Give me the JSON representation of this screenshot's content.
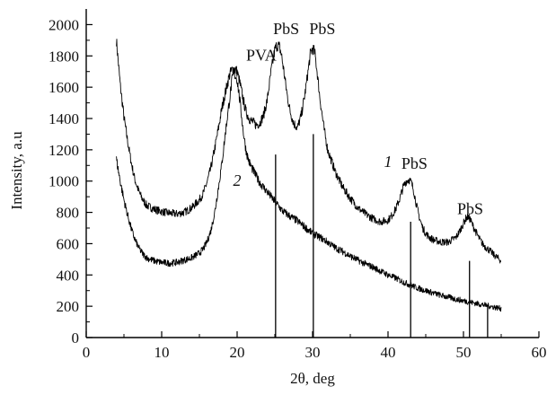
{
  "chart_data": {
    "type": "line",
    "xlabel": "2θ, deg",
    "ylabel": "Intensity, a.u",
    "xlim": [
      0,
      60
    ],
    "ylim": [
      0,
      2100
    ],
    "xticks": [
      0,
      10,
      20,
      30,
      40,
      50,
      60
    ],
    "yticks": [
      0,
      200,
      400,
      600,
      800,
      1000,
      1200,
      1400,
      1600,
      1800,
      2000
    ],
    "series": [
      {
        "name": "1",
        "x": [
          4,
          4.5,
          5,
          5.5,
          6,
          6.5,
          7,
          7.5,
          8,
          9,
          10,
          11,
          12,
          13,
          14,
          15,
          15.5,
          16,
          16.5,
          17,
          17.5,
          18,
          18.5,
          19,
          19.3,
          19.6,
          20,
          20.4,
          20.8,
          21.2,
          21.6,
          22,
          22.5,
          23,
          23.5,
          24,
          24.5,
          25,
          25.3,
          25.6,
          25.9,
          26.2,
          26.6,
          27,
          27.5,
          28,
          28.5,
          29,
          29.4,
          29.7,
          30,
          30.3,
          30.6,
          31,
          31.5,
          32,
          33,
          34,
          35,
          36,
          37,
          38,
          39,
          40,
          40.5,
          41,
          41.5,
          42,
          42.4,
          42.8,
          43.1,
          43.4,
          43.8,
          44.2,
          44.6,
          45,
          45.5,
          46,
          47,
          48,
          49,
          49.5,
          50,
          50.3,
          50.6,
          50.9,
          51.2,
          51.6,
          52,
          52.5,
          53,
          53.5,
          54,
          54.5,
          55
        ],
        "values": [
          1900,
          1620,
          1410,
          1250,
          1110,
          1000,
          930,
          880,
          845,
          820,
          805,
          795,
          790,
          800,
          830,
          880,
          920,
          990,
          1080,
          1200,
          1330,
          1470,
          1580,
          1680,
          1710,
          1720,
          1700,
          1620,
          1520,
          1440,
          1400,
          1380,
          1360,
          1370,
          1420,
          1520,
          1700,
          1840,
          1870,
          1860,
          1800,
          1700,
          1560,
          1450,
          1370,
          1340,
          1420,
          1560,
          1700,
          1810,
          1850,
          1820,
          1700,
          1520,
          1340,
          1200,
          1060,
          960,
          890,
          830,
          790,
          760,
          740,
          750,
          780,
          820,
          880,
          960,
          1000,
          1010,
          990,
          940,
          840,
          760,
          700,
          665,
          640,
          625,
          610,
          610,
          640,
          680,
          730,
          760,
          770,
          755,
          720,
          680,
          640,
          600,
          575,
          555,
          530,
          510,
          490
        ]
      },
      {
        "name": "2",
        "x": [
          4,
          4.5,
          5,
          5.5,
          6,
          6.5,
          7,
          7.5,
          8,
          9,
          10,
          11,
          12,
          13,
          14,
          15,
          15.5,
          16,
          16.5,
          17,
          17.5,
          18,
          18.5,
          19,
          19.3,
          19.6,
          20,
          20.4,
          20.8,
          21.2,
          21.6,
          22,
          23,
          24,
          25,
          26,
          27,
          28,
          29,
          30,
          31,
          32,
          33,
          34,
          35,
          36,
          37,
          38,
          39,
          40,
          41,
          42,
          43,
          44,
          45,
          46,
          47,
          48,
          49,
          50,
          51,
          52,
          53,
          54,
          55
        ],
        "values": [
          1140,
          1000,
          880,
          780,
          690,
          620,
          570,
          535,
          510,
          490,
          480,
          475,
          480,
          495,
          510,
          540,
          565,
          610,
          680,
          790,
          950,
          1120,
          1330,
          1520,
          1640,
          1690,
          1650,
          1500,
          1320,
          1190,
          1120,
          1080,
          990,
          930,
          870,
          810,
          775,
          745,
          705,
          665,
          640,
          610,
          575,
          550,
          520,
          495,
          470,
          450,
          425,
          400,
          380,
          355,
          335,
          315,
          300,
          285,
          270,
          258,
          245,
          235,
          225,
          215,
          205,
          195,
          185
        ]
      }
    ],
    "reference_lines": [
      {
        "x": 25.1,
        "value": 1170
      },
      {
        "x": 30.1,
        "value": 1300
      },
      {
        "x": 43.0,
        "value": 740
      },
      {
        "x": 50.8,
        "value": 490
      },
      {
        "x": 53.2,
        "value": 200
      }
    ],
    "annotations": [
      {
        "text": "PVA",
        "x": 23.2,
        "y": 1770,
        "kind": "peak"
      },
      {
        "text": "PbS",
        "x": 26.5,
        "y": 1940,
        "kind": "peak"
      },
      {
        "text": "PbS",
        "x": 31.3,
        "y": 1940,
        "kind": "peak"
      },
      {
        "text": "PbS",
        "x": 43.5,
        "y": 1080,
        "kind": "peak"
      },
      {
        "text": "PbS",
        "x": 50.9,
        "y": 790,
        "kind": "peak"
      },
      {
        "text": "1",
        "x": 40.0,
        "y": 1090,
        "kind": "curve"
      },
      {
        "text": "2",
        "x": 20.0,
        "y": 970,
        "kind": "curve"
      }
    ]
  }
}
